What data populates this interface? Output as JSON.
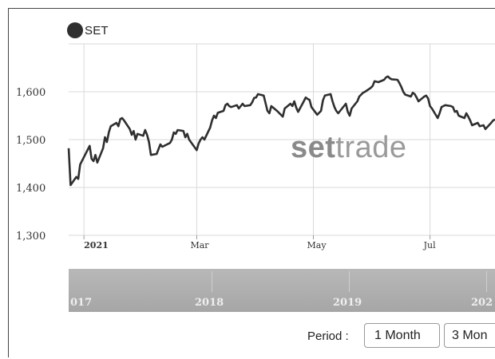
{
  "chart_data": {
    "type": "line",
    "series": [
      {
        "name": "SET",
        "color": "#2f2f2f",
        "points": [
          [
            "2020-12-24",
            1482
          ],
          [
            "2020-12-25",
            1405
          ],
          [
            "2020-12-28",
            1422
          ],
          [
            "2020-12-29",
            1418
          ],
          [
            "2020-12-30",
            1448
          ],
          [
            "2021-01-04",
            1487
          ],
          [
            "2021-01-05",
            1460
          ],
          [
            "2021-01-06",
            1455
          ],
          [
            "2021-01-07",
            1468
          ],
          [
            "2021-01-08",
            1452
          ],
          [
            "2021-01-11",
            1482
          ],
          [
            "2021-01-12",
            1505
          ],
          [
            "2021-01-13",
            1495
          ],
          [
            "2021-01-14",
            1515
          ],
          [
            "2021-01-15",
            1528
          ],
          [
            "2021-01-18",
            1535
          ],
          [
            "2021-01-19",
            1528
          ],
          [
            "2021-01-20",
            1543
          ],
          [
            "2021-01-21",
            1545
          ],
          [
            "2021-01-22",
            1540
          ],
          [
            "2021-01-25",
            1522
          ],
          [
            "2021-01-26",
            1510
          ],
          [
            "2021-01-27",
            1518
          ],
          [
            "2021-01-28",
            1500
          ],
          [
            "2021-01-29",
            1512
          ],
          [
            "2021-02-01",
            1508
          ],
          [
            "2021-02-02",
            1520
          ],
          [
            "2021-02-03",
            1510
          ],
          [
            "2021-02-04",
            1495
          ],
          [
            "2021-02-05",
            1468
          ],
          [
            "2021-02-08",
            1470
          ],
          [
            "2021-02-09",
            1480
          ],
          [
            "2021-02-10",
            1490
          ],
          [
            "2021-02-11",
            1485
          ],
          [
            "2021-02-15",
            1493
          ],
          [
            "2021-02-16",
            1500
          ],
          [
            "2021-02-17",
            1515
          ],
          [
            "2021-02-18",
            1512
          ],
          [
            "2021-02-19",
            1520
          ],
          [
            "2021-02-22",
            1518
          ],
          [
            "2021-02-23",
            1505
          ],
          [
            "2021-02-24",
            1512
          ],
          [
            "2021-02-25",
            1500
          ],
          [
            "2021-03-01",
            1478
          ],
          [
            "2021-03-02",
            1492
          ],
          [
            "2021-03-03",
            1500
          ],
          [
            "2021-03-04",
            1505
          ],
          [
            "2021-03-05",
            1500
          ],
          [
            "2021-03-08",
            1525
          ],
          [
            "2021-03-09",
            1540
          ],
          [
            "2021-03-10",
            1550
          ],
          [
            "2021-03-11",
            1545
          ],
          [
            "2021-03-12",
            1556
          ],
          [
            "2021-03-15",
            1560
          ],
          [
            "2021-03-16",
            1572
          ],
          [
            "2021-03-17",
            1575
          ],
          [
            "2021-03-18",
            1570
          ],
          [
            "2021-03-19",
            1568
          ],
          [
            "2021-03-22",
            1572
          ],
          [
            "2021-03-23",
            1565
          ],
          [
            "2021-03-24",
            1570
          ],
          [
            "2021-03-25",
            1575
          ],
          [
            "2021-03-26",
            1570
          ],
          [
            "2021-03-29",
            1572
          ],
          [
            "2021-03-30",
            1578
          ],
          [
            "2021-03-31",
            1587
          ],
          [
            "2021-04-01",
            1588
          ],
          [
            "2021-04-02",
            1595
          ],
          [
            "2021-04-05",
            1592
          ],
          [
            "2021-04-07",
            1560
          ],
          [
            "2021-04-08",
            1555
          ],
          [
            "2021-04-09",
            1570
          ],
          [
            "2021-04-12",
            1560
          ],
          [
            "2021-04-15",
            1548
          ],
          [
            "2021-04-16",
            1565
          ],
          [
            "2021-04-19",
            1575
          ],
          [
            "2021-04-20",
            1570
          ],
          [
            "2021-04-21",
            1580
          ],
          [
            "2021-04-22",
            1567
          ],
          [
            "2021-04-23",
            1558
          ],
          [
            "2021-04-26",
            1580
          ],
          [
            "2021-04-27",
            1588
          ],
          [
            "2021-04-28",
            1585
          ],
          [
            "2021-04-29",
            1583
          ],
          [
            "2021-04-30",
            1568
          ],
          [
            "2021-05-03",
            1552
          ],
          [
            "2021-05-05",
            1560
          ],
          [
            "2021-05-06",
            1582
          ],
          [
            "2021-05-07",
            1592
          ],
          [
            "2021-05-10",
            1595
          ],
          [
            "2021-05-11",
            1580
          ],
          [
            "2021-05-12",
            1568
          ],
          [
            "2021-05-13",
            1560
          ],
          [
            "2021-05-14",
            1555
          ],
          [
            "2021-05-17",
            1570
          ],
          [
            "2021-05-18",
            1575
          ],
          [
            "2021-05-19",
            1558
          ],
          [
            "2021-05-20",
            1550
          ],
          [
            "2021-05-21",
            1565
          ],
          [
            "2021-05-24",
            1580
          ],
          [
            "2021-05-25",
            1590
          ],
          [
            "2021-05-27",
            1598
          ],
          [
            "2021-05-28",
            1600
          ],
          [
            "2021-05-31",
            1608
          ],
          [
            "2021-06-01",
            1612
          ],
          [
            "2021-06-02",
            1622
          ],
          [
            "2021-06-04",
            1620
          ],
          [
            "2021-06-07",
            1625
          ],
          [
            "2021-06-08",
            1630
          ],
          [
            "2021-06-09",
            1632
          ],
          [
            "2021-06-10",
            1628
          ],
          [
            "2021-06-11",
            1626
          ],
          [
            "2021-06-14",
            1625
          ],
          [
            "2021-06-15",
            1618
          ],
          [
            "2021-06-16",
            1610
          ],
          [
            "2021-06-17",
            1600
          ],
          [
            "2021-06-18",
            1594
          ],
          [
            "2021-06-21",
            1590
          ],
          [
            "2021-06-22",
            1598
          ],
          [
            "2021-06-23",
            1595
          ],
          [
            "2021-06-24",
            1588
          ],
          [
            "2021-06-25",
            1580
          ],
          [
            "2021-06-28",
            1590
          ],
          [
            "2021-06-29",
            1592
          ],
          [
            "2021-06-30",
            1586
          ],
          [
            "2021-07-01",
            1570
          ],
          [
            "2021-07-02",
            1565
          ],
          [
            "2021-07-05",
            1545
          ],
          [
            "2021-07-06",
            1555
          ],
          [
            "2021-07-07",
            1568
          ],
          [
            "2021-07-08",
            1570
          ],
          [
            "2021-07-09",
            1572
          ],
          [
            "2021-07-12",
            1570
          ],
          [
            "2021-07-13",
            1568
          ],
          [
            "2021-07-14",
            1558
          ],
          [
            "2021-07-15",
            1560
          ],
          [
            "2021-07-16",
            1550
          ],
          [
            "2021-07-19",
            1545
          ],
          [
            "2021-07-20",
            1555
          ],
          [
            "2021-07-21",
            1548
          ],
          [
            "2021-07-22",
            1540
          ],
          [
            "2021-07-23",
            1530
          ],
          [
            "2021-07-26",
            1535
          ],
          [
            "2021-07-27",
            1528
          ],
          [
            "2021-07-29",
            1530
          ],
          [
            "2021-07-30",
            1522
          ],
          [
            "2021-08-02",
            1535
          ],
          [
            "2021-08-03",
            1540
          ],
          [
            "2021-08-04",
            1542
          ]
        ]
      }
    ],
    "x_ticks": [
      {
        "date": "2021-01-01",
        "label": "2021"
      },
      {
        "date": "2021-03-01",
        "label": "Mar"
      },
      {
        "date": "2021-05-01",
        "label": "May"
      },
      {
        "date": "2021-07-01",
        "label": "Jul"
      }
    ],
    "y_ticks": [
      1300,
      1400,
      1500,
      1600
    ],
    "y_tick_labels": [
      "1,300",
      "1,400",
      "1,500",
      "1,600"
    ],
    "ylim": [
      1300,
      1700
    ],
    "xlim": [
      "2020-12-24",
      "2021-08-04"
    ],
    "grid": true,
    "legend_position": "top-left"
  },
  "legend": {
    "label": "SET"
  },
  "watermark": {
    "bold": "set",
    "light": "trade"
  },
  "navigator": {
    "labels": [
      {
        "text": "017"
      },
      {
        "text": "2018"
      },
      {
        "text": "2019"
      },
      {
        "text": "202"
      }
    ]
  },
  "period": {
    "label": "Period :",
    "buttons": [
      "1 Month",
      "3 Mon"
    ]
  },
  "colors": {
    "line": "#2f2f2f",
    "grid": "#d9d9d9",
    "navigator": "#ababab"
  }
}
